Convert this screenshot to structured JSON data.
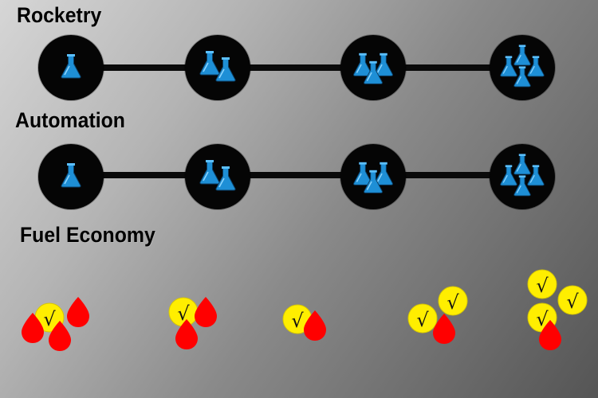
{
  "sections": {
    "rocketry": {
      "title": "Rocketry",
      "tiers": [
        {
          "tier": 1,
          "icon": "flask-icon",
          "count": 1
        },
        {
          "tier": 2,
          "icon": "flask-icon",
          "count": 2
        },
        {
          "tier": 3,
          "icon": "flask-icon",
          "count": 3
        },
        {
          "tier": 4,
          "icon": "flask-icon",
          "count": 4
        }
      ]
    },
    "automation": {
      "title": "Automation",
      "tiers": [
        {
          "tier": 1,
          "icon": "flask-icon",
          "count": 1
        },
        {
          "tier": 2,
          "icon": "flask-icon",
          "count": 2
        },
        {
          "tier": 3,
          "icon": "flask-icon",
          "count": 3
        },
        {
          "tier": 4,
          "icon": "flask-icon",
          "count": 4
        }
      ]
    },
    "fuel_economy": {
      "title": "Fuel Economy",
      "coin_symbol": "√",
      "levels": [
        {
          "level": 1,
          "coins": 1,
          "fuel_drops": 3
        },
        {
          "level": 2,
          "coins": 1,
          "fuel_drops": 2
        },
        {
          "level": 3,
          "coins": 1,
          "fuel_drops": 1
        },
        {
          "level": 4,
          "coins": 2,
          "fuel_drops": 1
        },
        {
          "level": 5,
          "coins": 3,
          "fuel_drops": 1
        }
      ]
    }
  },
  "icons": {
    "research": "flask-icon",
    "currency": "coin-icon",
    "fuel": "fuel-drop-icon"
  },
  "colors": {
    "flask": "#1e8fd6",
    "node": "#050505",
    "track": "#0a0a0a",
    "coin": "#ffee00",
    "fuel": "#ff0000"
  }
}
